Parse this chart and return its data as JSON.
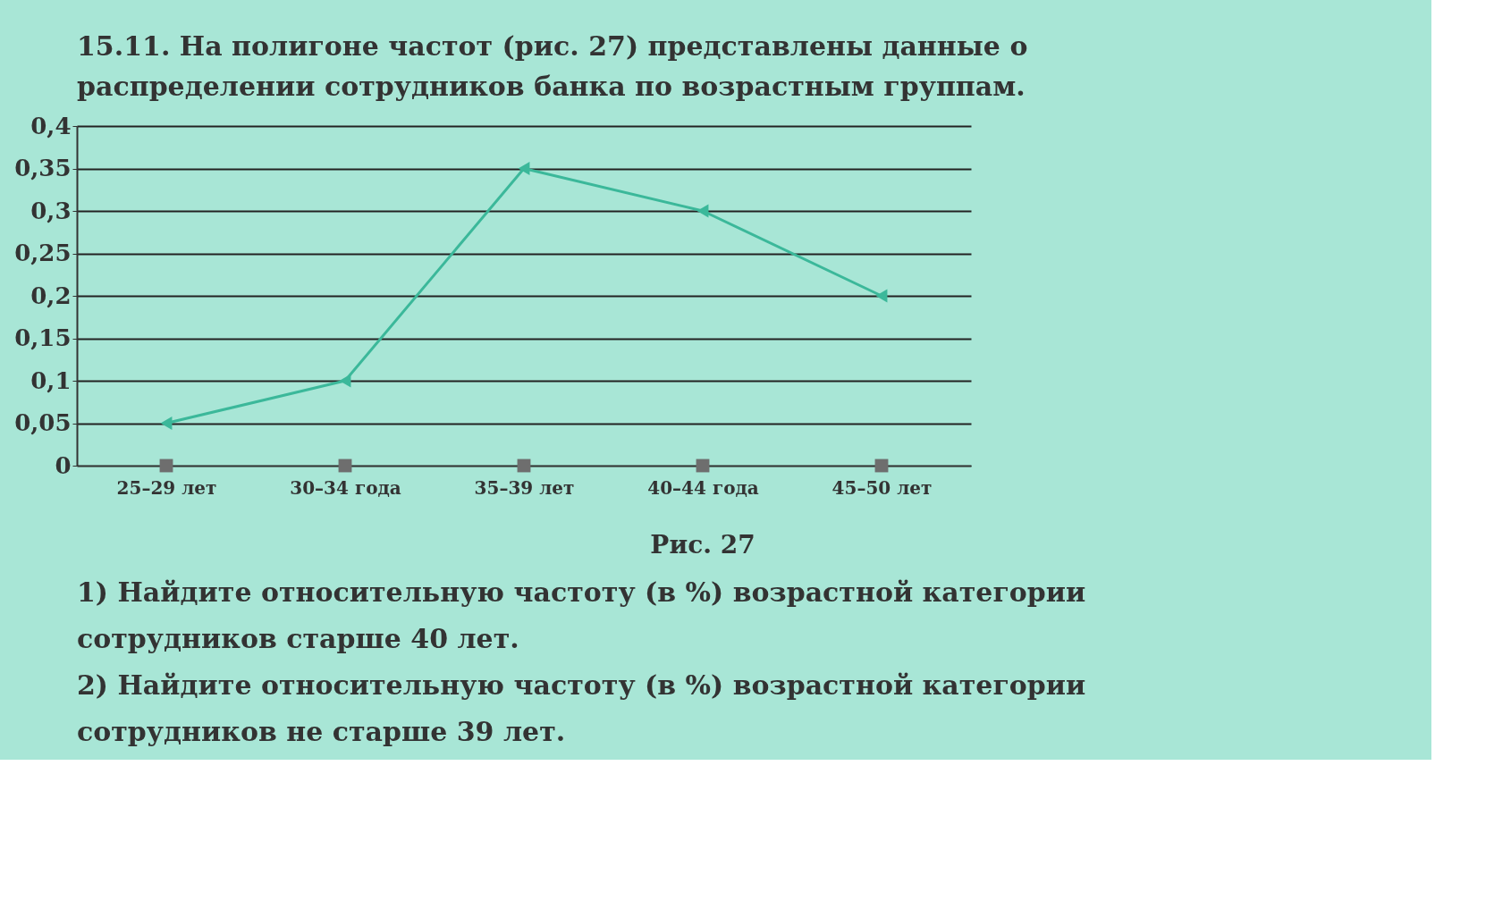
{
  "chart_data": {
    "type": "line",
    "title": "15.11. На полигоне частот (рис. 27) представлены данные о распределении сотрудников банка по возрастным группам.",
    "categories": [
      "25–29 лет",
      "30–34 года",
      "35–39 лет",
      "40–44 года",
      "45–50 лет"
    ],
    "series": [
      {
        "color": "#3bb89a",
        "values": [
          0.05,
          0.1,
          0.35,
          0.3,
          0.2
        ],
        "marker": "triangle"
      },
      {
        "type": "scatter",
        "color": "#6e6e6e",
        "values": [
          0,
          0,
          0,
          0,
          0
        ],
        "marker": "square"
      }
    ],
    "ylim": [
      0,
      0.4
    ],
    "yticks": [
      0,
      {
        "value": 0.05,
        "label": "0,05"
      },
      {
        "value": 0.1,
        "label": "0,1"
      },
      {
        "value": 0.15,
        "label": "0,15"
      },
      {
        "value": 0.2,
        "label": "0,2"
      },
      {
        "value": 0.25,
        "label": "0,25"
      },
      {
        "value": 0.3,
        "label": "0,3"
      },
      {
        "value": 0.35,
        "label": "0,35"
      },
      {
        "value": 0.4,
        "label": "0,4"
      }
    ],
    "grid": "y",
    "legend": false,
    "annotations": [
      "Рис. 27",
      "1) Найдите относительную частоту (в %) возрастной категории сотрудников старше 40 лет.",
      "2) Найдите относительную частоту (в %) возрастной категории сотрудников не старше 39 лет."
    ]
  }
}
